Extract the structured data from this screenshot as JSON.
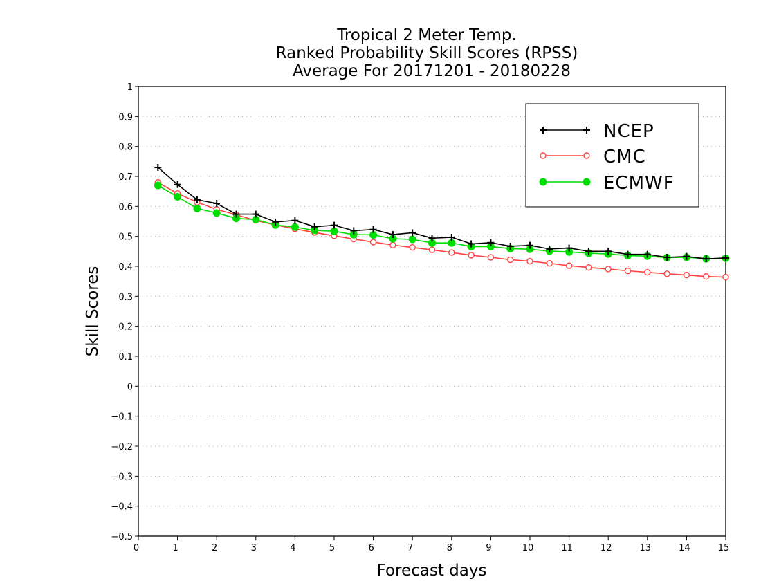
{
  "chart_data": {
    "type": "line",
    "title_lines": [
      "Tropical 2 Meter Temp.",
      "Ranked Probability Skill Scores (RPSS)",
      "Average For 20171201 - 20180228"
    ],
    "xlabel": "Forecast days",
    "ylabel": "Skill Scores",
    "xlim": [
      0,
      15
    ],
    "ylim": [
      -0.5,
      1
    ],
    "x_ticks": [
      "0",
      "1",
      "2",
      "3",
      "4",
      "5",
      "6",
      "7",
      "8",
      "9",
      "10",
      "11",
      "12",
      "13",
      "14",
      "15"
    ],
    "y_ticks": [
      "−0.5",
      "−0.4",
      "−0.3",
      "−0.2",
      "−0.1",
      "0",
      "0.1",
      "0.2",
      "0.3",
      "0.4",
      "0.5",
      "0.6",
      "0.7",
      "0.8",
      "0.9",
      "1"
    ],
    "grid": "horizontal-dotted",
    "legend_position": "top-right",
    "x": [
      0.5,
      1,
      1.5,
      2,
      2.5,
      3,
      3.5,
      4,
      4.5,
      5,
      5.5,
      6,
      6.5,
      7,
      7.5,
      8,
      8.5,
      9,
      9.5,
      10,
      10.5,
      11,
      11.5,
      12,
      12.5,
      13,
      13.5,
      14,
      14.5,
      15
    ],
    "series": [
      {
        "name": "NCEP",
        "color": "#000000",
        "marker": "plus",
        "values": [
          0.73,
          0.673,
          0.622,
          0.61,
          0.574,
          0.574,
          0.548,
          0.553,
          0.532,
          0.537,
          0.519,
          0.523,
          0.506,
          0.512,
          0.494,
          0.497,
          0.475,
          0.479,
          0.467,
          0.47,
          0.458,
          0.461,
          0.45,
          0.45,
          0.44,
          0.44,
          0.43,
          0.433,
          0.425,
          0.428
        ]
      },
      {
        "name": "CMC",
        "color": "#ff4040",
        "marker": "open-circle",
        "values": [
          0.68,
          0.643,
          0.614,
          0.59,
          0.572,
          0.553,
          0.538,
          0.525,
          0.513,
          0.502,
          0.491,
          0.481,
          0.471,
          0.463,
          0.455,
          0.446,
          0.437,
          0.43,
          0.422,
          0.417,
          0.41,
          0.402,
          0.396,
          0.391,
          0.385,
          0.38,
          0.375,
          0.371,
          0.366,
          0.364
        ]
      },
      {
        "name": "ECMWF",
        "color": "#00dd00",
        "marker": "filled-circle",
        "values": [
          0.67,
          0.632,
          0.593,
          0.578,
          0.56,
          0.556,
          0.538,
          0.531,
          0.52,
          0.517,
          0.506,
          0.505,
          0.492,
          0.49,
          0.478,
          0.478,
          0.466,
          0.466,
          0.459,
          0.457,
          0.451,
          0.448,
          0.444,
          0.441,
          0.436,
          0.434,
          0.429,
          0.43,
          0.425,
          0.427
        ]
      }
    ]
  }
}
